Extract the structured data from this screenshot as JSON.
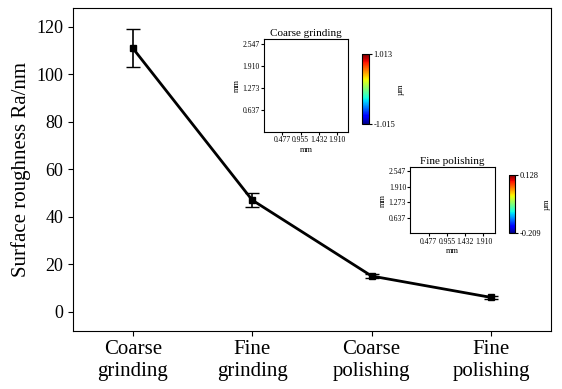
{
  "chart_data": {
    "type": "line",
    "categories": [
      "Coarse\ngrinding",
      "Fine\ngrinding",
      "Coarse\npolishing",
      "Fine\npolishing"
    ],
    "values": [
      111,
      47,
      15,
      6
    ],
    "errors": [
      8,
      3,
      1,
      0.5
    ],
    "color": "#000000",
    "marker": "s",
    "line_style": "solid",
    "y_label": "Surface roughness Ra/nm",
    "ylim": [
      -8,
      128
    ],
    "yticks": [
      0,
      20,
      40,
      60,
      80,
      100,
      120
    ],
    "insets": [
      {
        "title": "Coarse grinding",
        "x_label": "mm",
        "y_label": "mm",
        "xlim": [
          0,
          2.2
        ],
        "xticks": [
          0.477,
          0.955,
          1.432,
          {
            "value": 1.91,
            "label": "1.910"
          }
        ],
        "ylim": [
          0,
          2.7
        ],
        "yticks": [
          0.637,
          1.273,
          {
            "value": 1.91,
            "label": "1.910"
          },
          2.547
        ],
        "colorbar_range": [
          -1.015,
          1.013
        ],
        "colorbar_ticks": [
          -1.015,
          1.013
        ],
        "colorbar_label": "µm"
      },
      {
        "title": "Fine polishing",
        "x_label": "mm",
        "y_label": "mm",
        "xlim": [
          0,
          2.2
        ],
        "xticks": [
          0.477,
          0.955,
          1.432,
          {
            "value": 1.91,
            "label": "1.910"
          }
        ],
        "ylim": [
          0,
          2.7
        ],
        "yticks": [
          0.637,
          1.273,
          {
            "value": 1.91,
            "label": "1.910"
          },
          2.547
        ],
        "colorbar_range": [
          -0.209,
          0.128
        ],
        "colorbar_ticks": [
          -0.209,
          0.128
        ],
        "colorbar_label": "µm"
      }
    ]
  }
}
